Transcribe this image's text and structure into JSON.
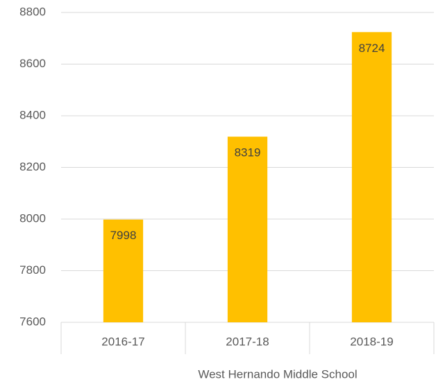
{
  "chart_data": {
    "type": "bar",
    "categories": [
      "2016-17",
      "2017-18",
      "2018-19"
    ],
    "values": [
      7998,
      8319,
      8724
    ],
    "color": "#ffc000",
    "xlabel": "West Hernando Middle School",
    "ylim": [
      7600,
      8800
    ],
    "yticks": [
      7600,
      7800,
      8000,
      8200,
      8400,
      8600,
      8800
    ],
    "grid": true
  }
}
